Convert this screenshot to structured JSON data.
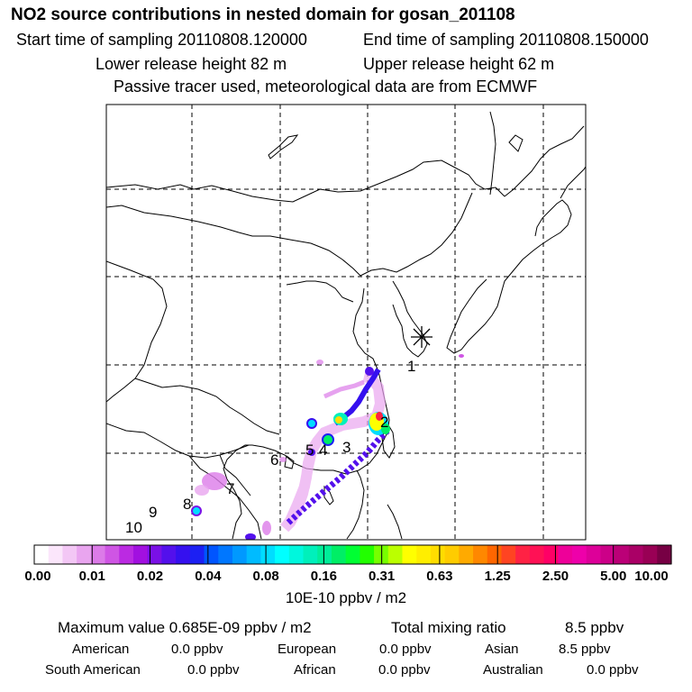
{
  "header": {
    "title": "NO2 source contributions in nested domain for gosan_201108",
    "start_time": "Start time of sampling 20110808.120000",
    "end_time": "End time of sampling 20110808.150000",
    "lower_release": "Lower release height   82 m",
    "upper_release": "Upper release height   62 m",
    "note": "Passive tracer used, meteorological data are from ECMWF"
  },
  "map": {
    "receptor_icon": "asterisk-receptor-icon",
    "source_labels": [
      "1",
      "2",
      "3",
      "4",
      "5",
      "6",
      "7",
      "8",
      "9",
      "10"
    ]
  },
  "colorbar": {
    "ticks": [
      "0.00",
      "0.01",
      "0.02",
      "0.04",
      "0.08",
      "0.16",
      "0.31",
      "0.63",
      "1.25",
      "2.50",
      "5.00",
      "10.00"
    ],
    "unit": "10E-10 ppbv / m2",
    "colors": [
      "#ffffff",
      "#fbe6fb",
      "#f3c7f5",
      "#e9a5ef",
      "#dc7be8",
      "#cf55e4",
      "#bb2ae2",
      "#a210e0",
      "#7a10e6",
      "#5310ec",
      "#3510ef",
      "#1c20f3",
      "#0055ff",
      "#0077ff",
      "#0099ff",
      "#00bbff",
      "#00ddff",
      "#00ffff",
      "#00f7dd",
      "#00f0bb",
      "#00ee99",
      "#00ee66",
      "#00ff33",
      "#22ff00",
      "#77ff00",
      "#bbff00",
      "#ffff00",
      "#ffee00",
      "#ffdd00",
      "#ffcc00",
      "#ffaa00",
      "#ff8800",
      "#ff6600",
      "#ff4422",
      "#ff2244",
      "#ff1155",
      "#ff0066",
      "#ee0099",
      "#ee00aa",
      "#dd0099",
      "#cc0088",
      "#bb0077",
      "#aa0066",
      "#990055",
      "#770044"
    ]
  },
  "summary": {
    "max_value": "Maximum value  0.685E-09 ppbv / m2",
    "total_label": "Total mixing ratio",
    "total_value": "8.5 ppbv",
    "regions": [
      {
        "name": "American",
        "value": "0.0 ppbv"
      },
      {
        "name": "European",
        "value": "0.0 ppbv"
      },
      {
        "name": "Asian",
        "value": "8.5 ppbv"
      },
      {
        "name": "South American",
        "value": "0.0 ppbv"
      },
      {
        "name": "African",
        "value": "0.0 ppbv"
      },
      {
        "name": "Australian",
        "value": "0.0 ppbv"
      }
    ]
  }
}
